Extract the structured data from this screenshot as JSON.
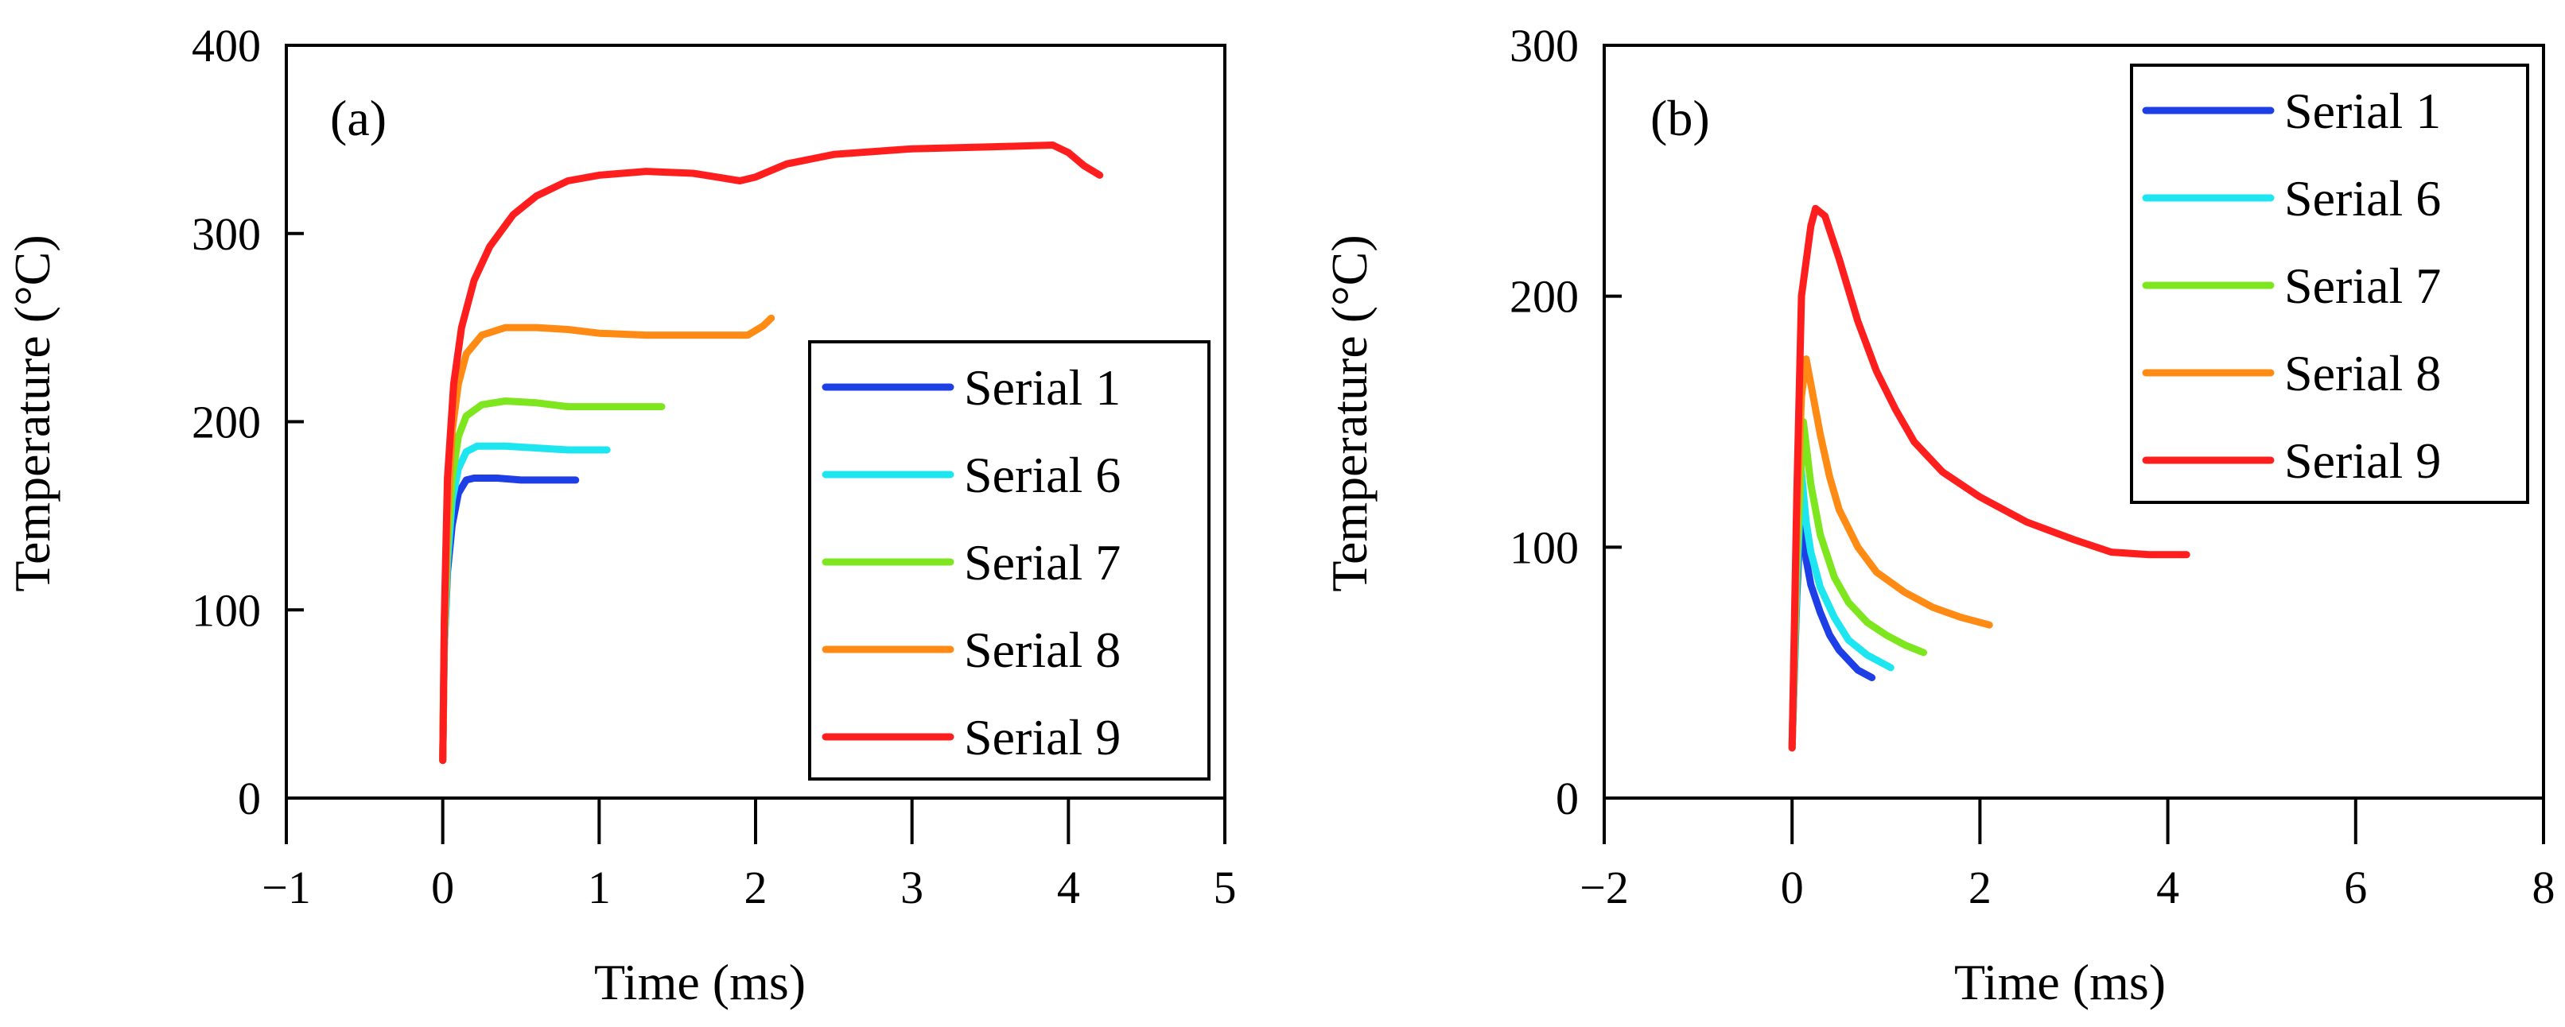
{
  "chart_data": [
    {
      "type": "line",
      "panel_label": "(a)",
      "xlabel": "Time (ms)",
      "ylabel": "Temperature (°C)",
      "xlim": [
        -1,
        5
      ],
      "ylim": [
        0,
        400
      ],
      "xticks": [
        -1,
        0,
        1,
        2,
        3,
        4,
        5
      ],
      "xtick_labels": [
        "−1",
        "0",
        "1",
        "2",
        "3",
        "4",
        "5"
      ],
      "yticks": [
        0,
        100,
        200,
        300,
        400
      ],
      "ytick_labels": [
        "0",
        "100",
        "200",
        "300",
        "400"
      ],
      "legend_position": "bottom-right",
      "series": [
        {
          "name": "Serial 1",
          "color": "#1f3fe6",
          "points": [
            [
              0,
              20
            ],
            [
              0.01,
              80
            ],
            [
              0.03,
              120
            ],
            [
              0.06,
              145
            ],
            [
              0.1,
              162
            ],
            [
              0.15,
              169
            ],
            [
              0.2,
              170
            ],
            [
              0.35,
              170
            ],
            [
              0.5,
              169
            ],
            [
              0.65,
              169
            ],
            [
              0.85,
              169
            ]
          ]
        },
        {
          "name": "Serial 6",
          "color": "#1ee6f0",
          "points": [
            [
              0,
              20
            ],
            [
              0.01,
              80
            ],
            [
              0.03,
              125
            ],
            [
              0.06,
              158
            ],
            [
              0.1,
              175
            ],
            [
              0.15,
              184
            ],
            [
              0.22,
              187
            ],
            [
              0.4,
              187
            ],
            [
              0.6,
              186
            ],
            [
              0.8,
              185
            ],
            [
              1.05,
              185
            ]
          ]
        },
        {
          "name": "Serial 7",
          "color": "#7de61e",
          "points": [
            [
              0,
              20
            ],
            [
              0.01,
              85
            ],
            [
              0.03,
              135
            ],
            [
              0.06,
              170
            ],
            [
              0.1,
              192
            ],
            [
              0.15,
              203
            ],
            [
              0.25,
              209
            ],
            [
              0.4,
              211
            ],
            [
              0.6,
              210
            ],
            [
              0.8,
              208
            ],
            [
              1.0,
              208
            ],
            [
              1.4,
              208
            ]
          ]
        },
        {
          "name": "Serial 8",
          "color": "#ff8a14",
          "points": [
            [
              0,
              20
            ],
            [
              0.01,
              90
            ],
            [
              0.03,
              150
            ],
            [
              0.06,
              195
            ],
            [
              0.1,
              220
            ],
            [
              0.15,
              236
            ],
            [
              0.25,
              246
            ],
            [
              0.4,
              250
            ],
            [
              0.6,
              250
            ],
            [
              0.8,
              249
            ],
            [
              1.0,
              247
            ],
            [
              1.3,
              246
            ],
            [
              1.6,
              246
            ],
            [
              1.95,
              246
            ],
            [
              2.05,
              251
            ],
            [
              2.1,
              255
            ]
          ]
        },
        {
          "name": "Serial 9",
          "color": "#ff1e1e",
          "points": [
            [
              0,
              20
            ],
            [
              0.01,
              95
            ],
            [
              0.03,
              170
            ],
            [
              0.07,
              220
            ],
            [
              0.12,
              250
            ],
            [
              0.2,
              275
            ],
            [
              0.3,
              293
            ],
            [
              0.45,
              310
            ],
            [
              0.6,
              320
            ],
            [
              0.8,
              328
            ],
            [
              1.0,
              331
            ],
            [
              1.3,
              333
            ],
            [
              1.6,
              332
            ],
            [
              1.75,
              330
            ],
            [
              1.9,
              328
            ],
            [
              2.0,
              330
            ],
            [
              2.2,
              337
            ],
            [
              2.5,
              342
            ],
            [
              3.0,
              345
            ],
            [
              3.5,
              346
            ],
            [
              3.9,
              347
            ],
            [
              4.0,
              343
            ],
            [
              4.1,
              336
            ],
            [
              4.2,
              331
            ]
          ]
        }
      ]
    },
    {
      "type": "line",
      "panel_label": "(b)",
      "xlabel": "Time (ms)",
      "ylabel": "Temperature (°C)",
      "xlim": [
        -2,
        8
      ],
      "ylim": [
        0,
        300
      ],
      "xticks": [
        -2,
        0,
        2,
        4,
        6,
        8
      ],
      "xtick_labels": [
        "−2",
        "0",
        "2",
        "4",
        "6",
        "8"
      ],
      "yticks": [
        0,
        100,
        200,
        300
      ],
      "ytick_labels": [
        "0",
        "100",
        "200",
        "300"
      ],
      "legend_position": "top-right",
      "series": [
        {
          "name": "Serial 1",
          "color": "#1f3fe6",
          "points": [
            [
              0,
              20
            ],
            [
              0.05,
              80
            ],
            [
              0.1,
              120
            ],
            [
              0.15,
              95
            ],
            [
              0.2,
              85
            ],
            [
              0.3,
              74
            ],
            [
              0.4,
              65
            ],
            [
              0.5,
              59
            ],
            [
              0.6,
              55
            ],
            [
              0.7,
              51
            ],
            [
              0.85,
              48
            ]
          ]
        },
        {
          "name": "Serial 6",
          "color": "#1ee6f0",
          "points": [
            [
              0,
              20
            ],
            [
              0.05,
              85
            ],
            [
              0.1,
              130
            ],
            [
              0.15,
              110
            ],
            [
              0.2,
              98
            ],
            [
              0.3,
              84
            ],
            [
              0.45,
              72
            ],
            [
              0.6,
              63
            ],
            [
              0.8,
              57
            ],
            [
              1.0,
              53
            ],
            [
              1.05,
              52
            ]
          ]
        },
        {
          "name": "Serial 7",
          "color": "#7de61e",
          "points": [
            [
              0,
              20
            ],
            [
              0.05,
              95
            ],
            [
              0.12,
              150
            ],
            [
              0.2,
              125
            ],
            [
              0.3,
              105
            ],
            [
              0.45,
              88
            ],
            [
              0.6,
              78
            ],
            [
              0.8,
              70
            ],
            [
              1.0,
              65
            ],
            [
              1.2,
              61
            ],
            [
              1.4,
              58
            ]
          ]
        },
        {
          "name": "Serial 8",
          "color": "#ff8a14",
          "points": [
            [
              0,
              20
            ],
            [
              0.05,
              110
            ],
            [
              0.1,
              160
            ],
            [
              0.15,
              175
            ],
            [
              0.2,
              165
            ],
            [
              0.3,
              145
            ],
            [
              0.4,
              128
            ],
            [
              0.5,
              115
            ],
            [
              0.7,
              100
            ],
            [
              0.9,
              90
            ],
            [
              1.2,
              82
            ],
            [
              1.5,
              76
            ],
            [
              1.8,
              72
            ],
            [
              2.1,
              69
            ]
          ]
        },
        {
          "name": "Serial 9",
          "color": "#ff1e1e",
          "points": [
            [
              0,
              20
            ],
            [
              0.05,
              120
            ],
            [
              0.1,
              200
            ],
            [
              0.2,
              228
            ],
            [
              0.25,
              235
            ],
            [
              0.35,
              232
            ],
            [
              0.5,
              215
            ],
            [
              0.7,
              190
            ],
            [
              0.9,
              170
            ],
            [
              1.1,
              155
            ],
            [
              1.3,
              142
            ],
            [
              1.6,
              130
            ],
            [
              2.0,
              120
            ],
            [
              2.5,
              110
            ],
            [
              3.0,
              103
            ],
            [
              3.4,
              98
            ],
            [
              3.8,
              97
            ],
            [
              4.2,
              97
            ]
          ]
        }
      ]
    }
  ]
}
